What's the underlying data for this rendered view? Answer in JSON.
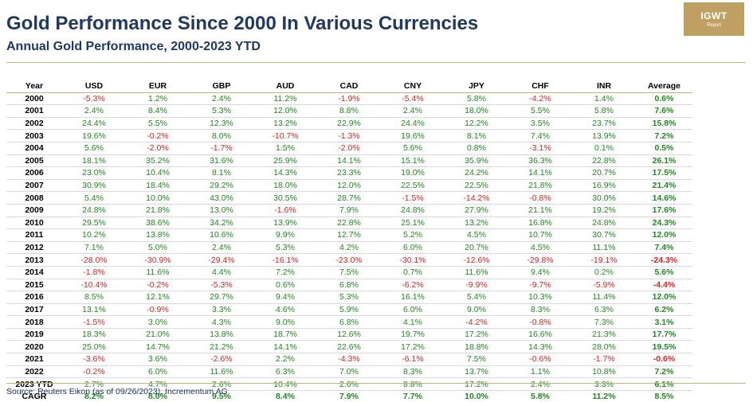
{
  "title": "Gold Performance Since 2000 In Various Currencies",
  "subtitle": "Annual Gold Performance, 2000-2023 YTD",
  "logo": {
    "main": "IGWT",
    "sub": "Report"
  },
  "colors": {
    "title": "#1f3864",
    "positive": "#1f8a1f",
    "negative": "#e02020",
    "rule": "#c7b27a",
    "logo_bg": "#c0a062"
  },
  "table": {
    "headers": [
      "Year",
      "USD",
      "EUR",
      "GBP",
      "AUD",
      "CAD",
      "CNY",
      "JPY",
      "CHF",
      "INR",
      "Average"
    ],
    "rows": [
      [
        "2000",
        "-5.3%",
        "1.2%",
        "2.4%",
        "11.2%",
        "-1.9%",
        "-5.4%",
        "5.8%",
        "-4.2%",
        "1.4%",
        "0.6%"
      ],
      [
        "2001",
        "2.4%",
        "8.4%",
        "5.3%",
        "12.0%",
        "8.8%",
        "2.4%",
        "18.0%",
        "5.5%",
        "5.8%",
        "7.6%"
      ],
      [
        "2002",
        "24.4%",
        "5.5%",
        "12.3%",
        "13.2%",
        "22.9%",
        "24.4%",
        "12.2%",
        "3.5%",
        "23.7%",
        "15.8%"
      ],
      [
        "2003",
        "19.6%",
        "-0.2%",
        "8.0%",
        "-10.7%",
        "-1.3%",
        "19.6%",
        "8.1%",
        "7.4%",
        "13.9%",
        "7.2%"
      ],
      [
        "2004",
        "5.6%",
        "-2.0%",
        "-1.7%",
        "1.5%",
        "-2.0%",
        "5.6%",
        "0.8%",
        "-3.1%",
        "0.1%",
        "0.5%"
      ],
      [
        "2005",
        "18.1%",
        "35.2%",
        "31.6%",
        "25.9%",
        "14.1%",
        "15.1%",
        "35.9%",
        "36.3%",
        "22.8%",
        "26.1%"
      ],
      [
        "2006",
        "23.0%",
        "10.4%",
        "8.1%",
        "14.3%",
        "23.3%",
        "19.0%",
        "24.2%",
        "14.1%",
        "20.7%",
        "17.5%"
      ],
      [
        "2007",
        "30.9%",
        "18.4%",
        "29.2%",
        "18.0%",
        "12.0%",
        "22.5%",
        "22.5%",
        "21.8%",
        "16.9%",
        "21.4%"
      ],
      [
        "2008",
        "5.4%",
        "10.0%",
        "43.0%",
        "30.5%",
        "28.7%",
        "-1.5%",
        "-14.2%",
        "-0.8%",
        "30.0%",
        "14.6%"
      ],
      [
        "2009",
        "24.8%",
        "21.8%",
        "13.0%",
        "-1.6%",
        "7.9%",
        "24.8%",
        "27.9%",
        "21.1%",
        "19.2%",
        "17.6%"
      ],
      [
        "2010",
        "29.5%",
        "38.6%",
        "34.2%",
        "13.9%",
        "22.8%",
        "25.1%",
        "13.2%",
        "16.8%",
        "24.8%",
        "24.3%"
      ],
      [
        "2011",
        "10.2%",
        "13.8%",
        "10.6%",
        "9.9%",
        "12.7%",
        "5.2%",
        "4.5%",
        "10.7%",
        "30.7%",
        "12.0%"
      ],
      [
        "2012",
        "7.1%",
        "5.0%",
        "2.4%",
        "5.3%",
        "4.2%",
        "6.0%",
        "20.7%",
        "4.5%",
        "11.1%",
        "7.4%"
      ],
      [
        "2013",
        "-28.0%",
        "-30.9%",
        "-29.4%",
        "-16.1%",
        "-23.0%",
        "-30.1%",
        "-12.6%",
        "-29.8%",
        "-19.1%",
        "-24.3%"
      ],
      [
        "2014",
        "-1.8%",
        "11.6%",
        "4.4%",
        "7.2%",
        "7.5%",
        "0.7%",
        "11.6%",
        "9.4%",
        "0.2%",
        "5.6%"
      ],
      [
        "2015",
        "-10.4%",
        "-0.2%",
        "-5.3%",
        "0.6%",
        "6.8%",
        "-6.2%",
        "-9.9%",
        "-9.7%",
        "-5.9%",
        "-4.4%"
      ],
      [
        "2016",
        "8.5%",
        "12.1%",
        "29.7%",
        "9.4%",
        "5.3%",
        "16.1%",
        "5.4%",
        "10.3%",
        "11.4%",
        "12.0%"
      ],
      [
        "2017",
        "13.1%",
        "-0.9%",
        "3.3%",
        "4.6%",
        "5.9%",
        "6.0%",
        "9.0%",
        "8.3%",
        "6.3%",
        "6.2%"
      ],
      [
        "2018",
        "-1.5%",
        "3.0%",
        "4.3%",
        "9.0%",
        "6.8%",
        "4.1%",
        "-4.2%",
        "-0.8%",
        "7.3%",
        "3.1%"
      ],
      [
        "2019",
        "18.3%",
        "21.0%",
        "13.8%",
        "18.7%",
        "12.6%",
        "19.7%",
        "17.2%",
        "16.6%",
        "21.3%",
        "17.7%"
      ],
      [
        "2020",
        "25.0%",
        "14.7%",
        "21.2%",
        "14.1%",
        "22.6%",
        "17.2%",
        "18.8%",
        "14.3%",
        "28.0%",
        "19.5%"
      ],
      [
        "2021",
        "-3.6%",
        "3.6%",
        "-2.6%",
        "2.2%",
        "-4.3%",
        "-6.1%",
        "7.5%",
        "-0.6%",
        "-1.7%",
        "-0.6%"
      ],
      [
        "2022",
        "-0.2%",
        "6.0%",
        "11.6%",
        "6.3%",
        "7.0%",
        "8.3%",
        "13.7%",
        "1.1%",
        "10.8%",
        "7.2%"
      ],
      [
        "2023 YTD",
        "2.7%",
        "4.7%",
        "2.6%",
        "10.4%",
        "2.6%",
        "8.8%",
        "17.2%",
        "2.4%",
        "3.3%",
        "6.1%"
      ]
    ],
    "cagr": [
      "CAGR",
      "8.2%",
      "8.0%",
      "9.5%",
      "8.4%",
      "7.9%",
      "7.7%",
      "10.0%",
      "5.8%",
      "11.2%",
      "8.5%"
    ]
  },
  "source": "Source: Reuters Eikon (as of 09/26/2023), Incrementum AG"
}
